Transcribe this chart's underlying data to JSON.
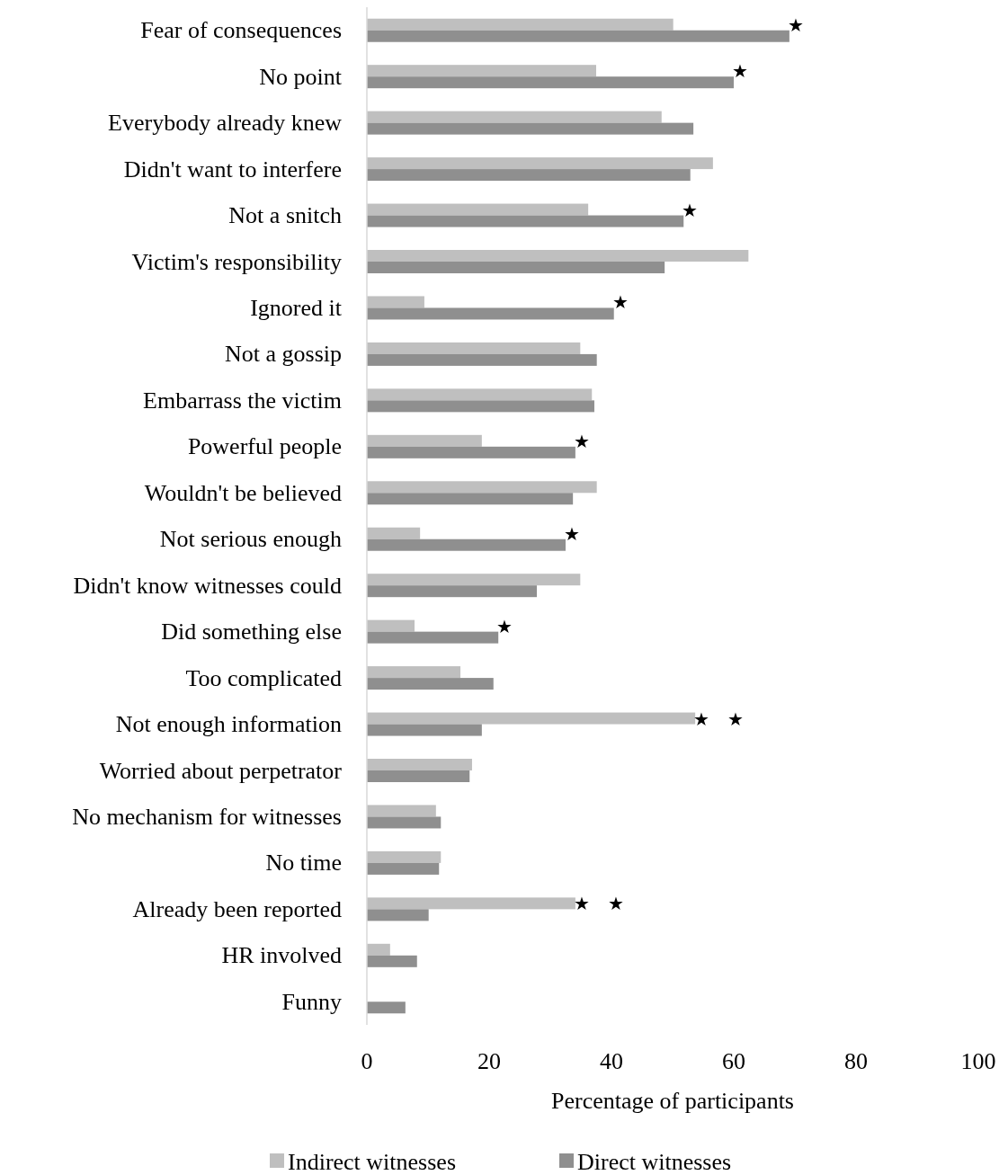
{
  "chart_data": {
    "type": "bar",
    "orientation": "horizontal",
    "xlabel": "Percentage of participants",
    "categories": [
      "Fear of consequences",
      "No point",
      "Everybody already knew",
      "Didn't want to interfere",
      "Not a snitch",
      "Victim's responsibility",
      "Ignored it",
      "Not a gossip",
      "Embarrass the victim",
      "Powerful people",
      "Wouldn't be believed",
      "Not serious enough",
      "Didn't know witnesses could",
      "Did something else",
      "Too complicated",
      "Not enough information",
      "Worried about perpetrator",
      "No mechanism for witnesses",
      "No time",
      "Already been reported",
      "HR involved",
      "Funny"
    ],
    "series": [
      {
        "name": "Indirect witnesses",
        "color": "#bfbfbf",
        "values": [
          50.1,
          37.5,
          48.2,
          56.6,
          36.2,
          62.4,
          9.4,
          34.9,
          36.8,
          18.8,
          37.6,
          8.7,
          34.9,
          7.8,
          15.3,
          53.7,
          17.2,
          11.3,
          12.1,
          34.1,
          3.8,
          0
        ]
      },
      {
        "name": "Direct witnesses",
        "color": "#8f8f8f",
        "values": [
          69.1,
          60,
          53.4,
          52.9,
          51.8,
          48.7,
          40.4,
          37.6,
          37.2,
          34.1,
          33.7,
          32.5,
          27.8,
          21.5,
          20.7,
          18.8,
          16.8,
          12.1,
          11.8,
          10.1,
          8.2,
          6.3
        ]
      }
    ],
    "xlim": [
      0,
      100
    ],
    "xticks": [
      0,
      20,
      40,
      60,
      80,
      100
    ],
    "grid": false,
    "legend": "bottom",
    "annotations": [
      {
        "text": "★",
        "x": 69.1,
        "y": "Fear of consequences"
      },
      {
        "text": "★",
        "x": 60,
        "y": "No point"
      },
      {
        "text": "★",
        "x": 51.8,
        "y": "Not a snitch"
      },
      {
        "text": "★",
        "x": 40.4,
        "y": "Ignored it"
      },
      {
        "text": "★",
        "x": 34.1,
        "y": "Powerful people"
      },
      {
        "text": "★",
        "x": 32.5,
        "y": "Not serious enough"
      },
      {
        "text": "★",
        "x": 21.5,
        "y": "Did something else"
      },
      {
        "text": "★    ★",
        "x": 53.7,
        "y": "Not enough information"
      },
      {
        "text": "★    ★",
        "x": 34.1,
        "y": "Already been reported"
      }
    ]
  }
}
